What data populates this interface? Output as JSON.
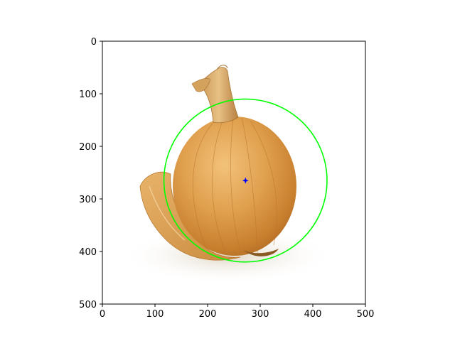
{
  "chart_data": {
    "type": "image",
    "title": "",
    "xlabel": "",
    "ylabel": "",
    "xlim": [
      0,
      500
    ],
    "ylim": [
      500,
      0
    ],
    "y_inverted": true,
    "grid": false,
    "xticks": [
      0,
      100,
      200,
      300,
      400,
      500
    ],
    "yticks": [
      0,
      100,
      200,
      300,
      400,
      500
    ],
    "image_subject": "onion-photo",
    "annotations": [
      {
        "type": "circle",
        "center": [
          272,
          265
        ],
        "radius": 155,
        "color": "#00ff00"
      },
      {
        "type": "point",
        "x": 272,
        "y": 265,
        "marker": "star",
        "color": "#0000ff"
      }
    ]
  }
}
